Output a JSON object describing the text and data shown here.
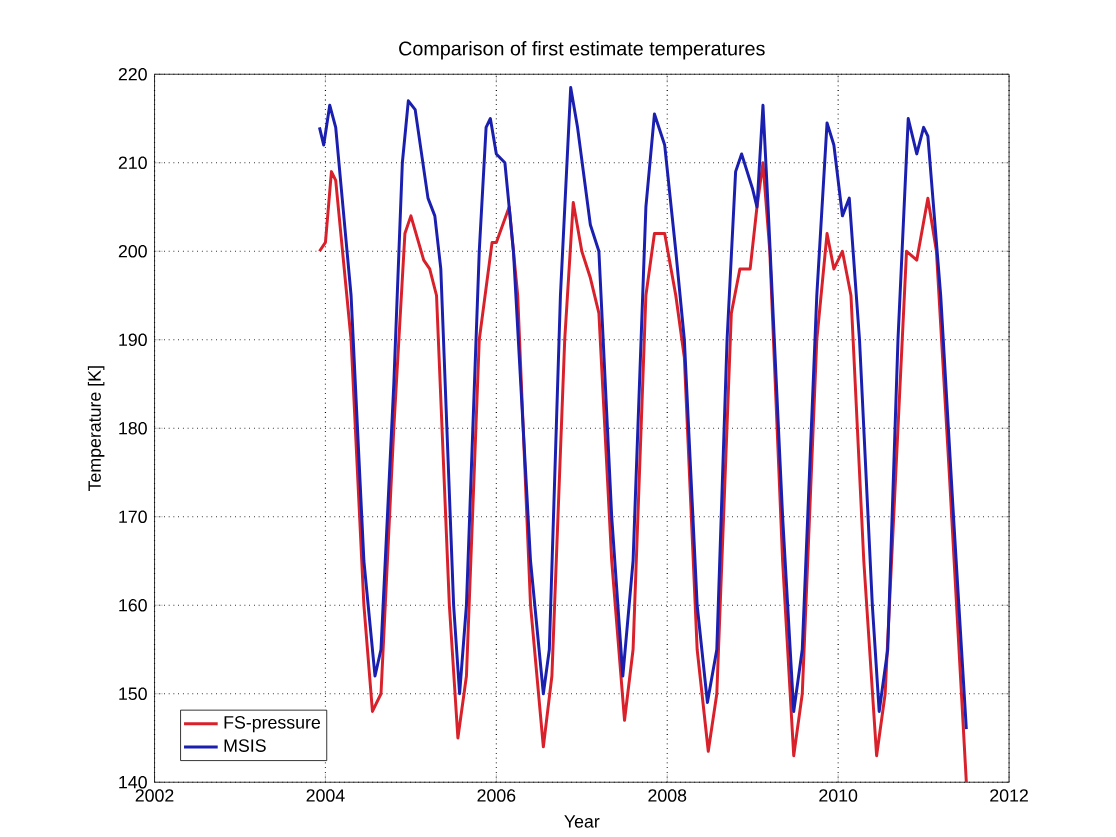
{
  "chart_data": {
    "type": "line",
    "title": "Comparison of first estimate temperatures",
    "xlabel": "Year",
    "ylabel": "Temperature [K]",
    "xlim": [
      2002,
      2012
    ],
    "ylim": [
      140,
      220
    ],
    "xticks": [
      2002,
      2004,
      2006,
      2008,
      2010,
      2012
    ],
    "yticks": [
      140,
      150,
      160,
      170,
      180,
      190,
      200,
      210,
      220
    ],
    "grid": true,
    "legend": "bottom left",
    "line_style": "solid",
    "marker": "none",
    "series": [
      {
        "name": "FS-pressure",
        "color": "#d9212b",
        "x": [
          2003.93,
          2004.0,
          2004.07,
          2004.12,
          2004.3,
          2004.45,
          2004.55,
          2004.65,
          2004.8,
          2004.93,
          2005.0,
          2005.15,
          2005.22,
          2005.3,
          2005.45,
          2005.55,
          2005.65,
          2005.8,
          2005.95,
          2006.0,
          2006.15,
          2006.25,
          2006.4,
          2006.55,
          2006.65,
          2006.8,
          2006.9,
          2007.0,
          2007.1,
          2007.2,
          2007.35,
          2007.5,
          2007.6,
          2007.75,
          2007.85,
          2007.97,
          2008.1,
          2008.2,
          2008.35,
          2008.48,
          2008.58,
          2008.75,
          2008.85,
          2008.97,
          2009.05,
          2009.12,
          2009.2,
          2009.35,
          2009.48,
          2009.58,
          2009.75,
          2009.87,
          2009.95,
          2010.05,
          2010.15,
          2010.3,
          2010.45,
          2010.55,
          2010.7,
          2010.8,
          2010.92,
          2011.05,
          2011.15,
          2011.3,
          2011.5
        ],
        "values": [
          200,
          201,
          209,
          208,
          190,
          160,
          148,
          150,
          180,
          202,
          204,
          199,
          198,
          195,
          160,
          145,
          152,
          190,
          201,
          201,
          205,
          195,
          160,
          144,
          152,
          190,
          205.5,
          200,
          197,
          193,
          165,
          147,
          155,
          195,
          202,
          202,
          195,
          188,
          155,
          143.5,
          150,
          193,
          198,
          198,
          205,
          210,
          200,
          165,
          143,
          150,
          190,
          202,
          198,
          200,
          195,
          165,
          143,
          150,
          180,
          200,
          199,
          206,
          200,
          175,
          140
        ]
      },
      {
        "name": "MSIS",
        "color": "#1a1fb0",
        "x": [
          2003.93,
          2003.98,
          2004.05,
          2004.12,
          2004.3,
          2004.45,
          2004.58,
          2004.65,
          2004.8,
          2004.9,
          2004.97,
          2005.05,
          2005.2,
          2005.28,
          2005.35,
          2005.5,
          2005.57,
          2005.65,
          2005.8,
          2005.88,
          2005.93,
          2006.0,
          2006.1,
          2006.2,
          2006.4,
          2006.55,
          2006.62,
          2006.75,
          2006.87,
          2006.95,
          2007.1,
          2007.2,
          2007.35,
          2007.48,
          2007.6,
          2007.75,
          2007.85,
          2007.97,
          2008.1,
          2008.2,
          2008.35,
          2008.47,
          2008.58,
          2008.7,
          2008.8,
          2008.87,
          2009.0,
          2009.05,
          2009.12,
          2009.18,
          2009.35,
          2009.48,
          2009.58,
          2009.75,
          2009.87,
          2009.95,
          2010.05,
          2010.13,
          2010.25,
          2010.4,
          2010.48,
          2010.58,
          2010.7,
          2010.82,
          2010.92,
          2011.0,
          2011.05,
          2011.2,
          2011.35,
          2011.5
        ],
        "values": [
          214,
          212,
          216.5,
          214,
          195,
          165,
          152,
          155,
          185,
          210,
          217,
          216,
          206,
          204,
          198,
          160,
          150,
          160,
          200,
          214,
          215,
          211,
          210,
          200,
          165,
          150,
          155,
          195,
          218.5,
          214,
          203,
          200,
          170,
          152,
          165,
          205,
          215.5,
          212,
          200,
          190,
          160,
          149,
          155,
          190,
          209,
          211,
          207,
          205,
          216.5,
          205,
          170,
          148,
          155,
          195,
          214.5,
          212,
          204,
          206,
          190,
          160,
          148,
          155,
          190,
          215,
          211,
          214,
          213,
          195,
          170,
          146
        ]
      }
    ]
  }
}
